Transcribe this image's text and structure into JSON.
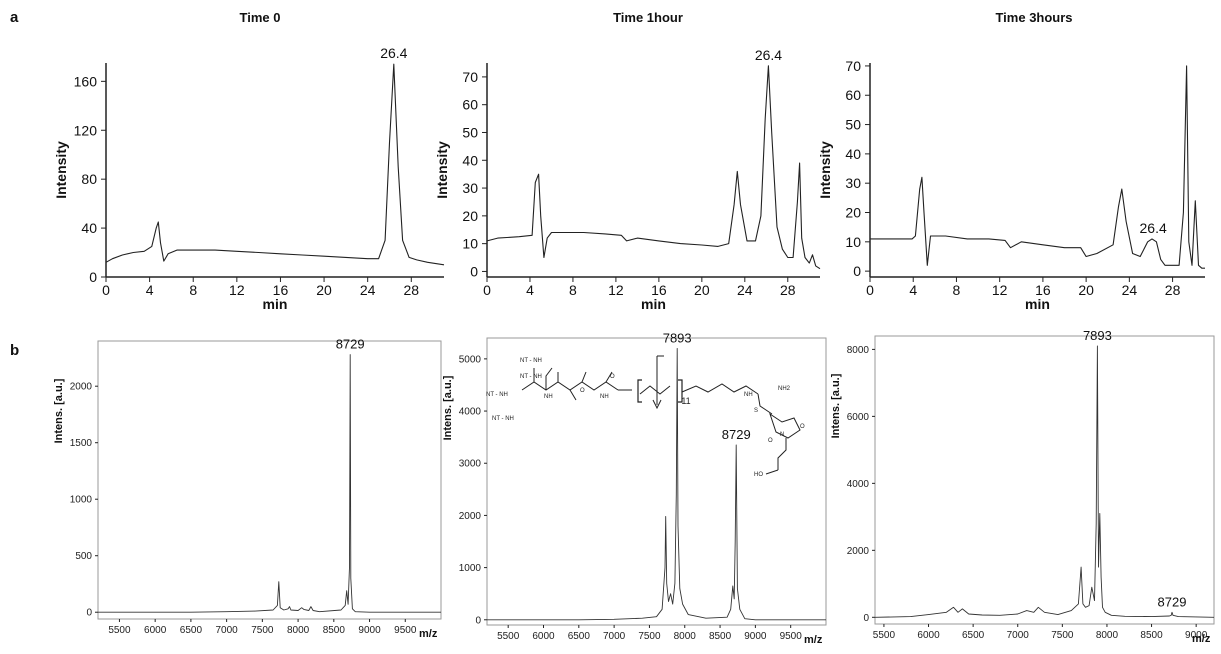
{
  "panel_labels": [
    "a",
    "b"
  ],
  "chart_data": [
    {
      "type": "line",
      "panel": "a",
      "title": "Time 0",
      "xlabel": "min",
      "ylabel": "Intensity",
      "xlim": [
        0,
        31
      ],
      "ylim": [
        0,
        175
      ],
      "xticks": [
        0,
        4,
        8,
        12,
        16,
        20,
        24,
        28
      ],
      "yticks": [
        0,
        40,
        80,
        120,
        160
      ],
      "grid": false,
      "series": [
        {
          "x": [
            0,
            0.6,
            1.5,
            2.5,
            3.5,
            4.2,
            4.6,
            4.8,
            5.0,
            5.3,
            5.7,
            6.5,
            8,
            10,
            12,
            14,
            16,
            18,
            20,
            22,
            24,
            25,
            25.6,
            26.0,
            26.4,
            26.8,
            27.2,
            27.8,
            28.5,
            29.5,
            31
          ],
          "y": [
            12,
            15,
            18,
            20,
            21,
            25,
            40,
            45,
            28,
            13,
            19,
            22,
            22,
            22,
            21,
            20,
            19,
            18,
            17,
            16,
            15,
            15,
            30,
            110,
            174,
            90,
            30,
            16,
            14,
            12,
            10
          ]
        }
      ],
      "annotations": [
        {
          "text": "26.4",
          "x": 26.4,
          "y": 174
        }
      ]
    },
    {
      "type": "line",
      "panel": "a",
      "title": "Time 1hour",
      "xlabel": "min",
      "ylabel": "Intensity",
      "xlim": [
        0,
        31
      ],
      "ylim": [
        -2,
        75
      ],
      "xticks": [
        0,
        4,
        8,
        12,
        16,
        20,
        24,
        28
      ],
      "yticks": [
        0,
        10,
        20,
        30,
        40,
        50,
        60,
        70
      ],
      "grid": false,
      "series": [
        {
          "x": [
            0,
            1,
            3,
            4.2,
            4.5,
            4.8,
            5.0,
            5.3,
            5.6,
            6,
            7,
            9,
            11,
            12.5,
            13,
            14,
            16,
            18,
            20,
            21.5,
            22.5,
            23.0,
            23.3,
            23.6,
            24.2,
            25,
            25.5,
            25.9,
            26.2,
            26.5,
            27,
            27.5,
            28,
            28.5,
            28.9,
            29.1,
            29.3,
            29.6,
            30,
            30.3,
            30.6,
            31
          ],
          "y": [
            11,
            12,
            12.5,
            13,
            32,
            35,
            20,
            5,
            12,
            14,
            14,
            14,
            13.5,
            13,
            11,
            12,
            11,
            10,
            9.5,
            9,
            10,
            24,
            36,
            24,
            11,
            11,
            20,
            55,
            74,
            50,
            16,
            8,
            5,
            5,
            25,
            39,
            12,
            5,
            3,
            6,
            2,
            1
          ]
        }
      ],
      "annotations": [
        {
          "text": "26.4",
          "x": 26.2,
          "y": 74
        }
      ]
    },
    {
      "type": "line",
      "panel": "a",
      "title": "Time 3hours",
      "xlabel": "min",
      "ylabel": "Intensity",
      "xlim": [
        0,
        31
      ],
      "ylim": [
        -2,
        71
      ],
      "xticks": [
        0,
        4,
        8,
        12,
        16,
        20,
        24,
        28
      ],
      "yticks": [
        0,
        10,
        20,
        30,
        40,
        50,
        60,
        70
      ],
      "grid": false,
      "series": [
        {
          "x": [
            0,
            2,
            3.5,
            3.9,
            4.2,
            4.6,
            4.8,
            5.0,
            5.3,
            5.6,
            6,
            7,
            9,
            11,
            12.5,
            13,
            14,
            16,
            18,
            19.5,
            20,
            21,
            22.5,
            23.0,
            23.3,
            23.7,
            24.3,
            25,
            25.7,
            26.1,
            26.5,
            26.9,
            27.3,
            28,
            28.6,
            29.0,
            29.3,
            29.5,
            29.8,
            30.1,
            30.4,
            30.7,
            31
          ],
          "y": [
            11,
            11,
            11,
            11,
            12,
            28,
            32,
            20,
            2,
            12,
            12,
            12,
            11,
            11,
            10.5,
            8,
            10,
            9,
            8,
            8,
            5,
            6,
            9,
            22,
            28,
            17,
            6,
            5,
            10,
            11,
            10,
            4,
            2,
            2,
            2,
            20,
            70,
            10,
            2,
            24,
            2,
            1,
            1
          ]
        }
      ],
      "annotations": [
        {
          "text": "26.4",
          "x": 26.2,
          "y": 11
        }
      ]
    },
    {
      "type": "line",
      "panel": "b",
      "title": "",
      "xlabel": "m/z",
      "ylabel": "Intens. [a.u.]",
      "xlim": [
        5200,
        10000
      ],
      "ylim": [
        -60,
        2400
      ],
      "xticks": [
        5500,
        6000,
        6500,
        7000,
        7500,
        8000,
        8500,
        9000,
        9500
      ],
      "yticks": [
        0,
        500,
        1000,
        1500,
        2000
      ],
      "grid": false,
      "series": [
        {
          "x": [
            5200,
            6500,
            7000,
            7400,
            7650,
            7710,
            7730,
            7750,
            7800,
            7860,
            7880,
            7900,
            8000,
            8050,
            8080,
            8150,
            8180,
            8210,
            8300,
            8600,
            8660,
            8680,
            8700,
            8720,
            8729,
            8738,
            8760,
            8800,
            9000,
            10000
          ],
          "y": [
            0,
            0,
            5,
            10,
            20,
            60,
            270,
            40,
            20,
            30,
            50,
            20,
            15,
            40,
            25,
            15,
            50,
            15,
            5,
            20,
            60,
            190,
            70,
            400,
            2280,
            300,
            30,
            5,
            0,
            0
          ]
        }
      ],
      "annotations": [
        {
          "text": "8729",
          "x": 8729,
          "y": 2280
        }
      ]
    },
    {
      "type": "line",
      "panel": "b",
      "title": "",
      "xlabel": "m/z",
      "ylabel": "Intens. [a.u.]",
      "xlim": [
        5200,
        10000
      ],
      "ylim": [
        -100,
        5400
      ],
      "xticks": [
        5500,
        6000,
        6500,
        7000,
        7500,
        8000,
        8500,
        9000,
        9500
      ],
      "yticks": [
        0,
        1000,
        2000,
        3000,
        4000,
        5000
      ],
      "grid": false,
      "series": [
        {
          "x": [
            5200,
            6500,
            7000,
            7400,
            7600,
            7680,
            7720,
            7730,
            7745,
            7770,
            7800,
            7830,
            7860,
            7880,
            7893,
            7905,
            7930,
            7970,
            8050,
            8300,
            8600,
            8650,
            8680,
            8700,
            8715,
            8729,
            8745,
            8780,
            8850,
            9000,
            10000
          ],
          "y": [
            0,
            0,
            10,
            30,
            60,
            200,
            1000,
            1980,
            700,
            350,
            500,
            300,
            700,
            2400,
            5200,
            1800,
            600,
            300,
            100,
            30,
            50,
            200,
            650,
            400,
            1500,
            3350,
            600,
            200,
            20,
            0,
            0
          ]
        }
      ],
      "annotations": [
        {
          "text": "7893",
          "x": 7893,
          "y": 5200
        },
        {
          "text": "8729",
          "x": 8729,
          "y": 3350
        },
        {
          "text": "11",
          "x": 7680,
          "y": 4300
        }
      ],
      "inset_structure_labels": [
        "NT - NH",
        "NT - NH",
        "NT - NH",
        "NT - NH",
        "O",
        "O",
        "NH",
        "NH",
        "NH2",
        "NH",
        "S",
        "N",
        "O",
        "O",
        "HO"
      ]
    },
    {
      "type": "line",
      "panel": "b",
      "title": "",
      "xlabel": "m/z",
      "ylabel": "Intens. [a.u.]",
      "xlim": [
        5400,
        9200
      ],
      "ylim": [
        -200,
        8400
      ],
      "xticks": [
        5500,
        6000,
        6500,
        7000,
        7500,
        8000,
        8500,
        9000
      ],
      "yticks": [
        0,
        2000,
        4000,
        6000,
        8000
      ],
      "grid": false,
      "series": [
        {
          "x": [
            5400,
            5800,
            6000,
            6200,
            6280,
            6330,
            6380,
            6450,
            6600,
            6800,
            7000,
            7100,
            7180,
            7230,
            7300,
            7450,
            7600,
            7680,
            7710,
            7730,
            7760,
            7800,
            7830,
            7860,
            7880,
            7893,
            7905,
            7920,
            7935,
            7950,
            7980,
            8050,
            8200,
            8500,
            8700,
            8720,
            8729,
            8740,
            8800,
            9200
          ],
          "y": [
            0,
            20,
            80,
            150,
            300,
            150,
            250,
            100,
            70,
            60,
            100,
            200,
            150,
            300,
            150,
            80,
            200,
            400,
            1500,
            400,
            300,
            350,
            900,
            500,
            2800,
            8100,
            1500,
            3100,
            1200,
            300,
            150,
            60,
            30,
            20,
            40,
            60,
            150,
            60,
            20,
            0
          ]
        }
      ],
      "annotations": [
        {
          "text": "7893",
          "x": 7893,
          "y": 8100
        },
        {
          "text": "8729",
          "x": 8729,
          "y": 150
        }
      ]
    }
  ]
}
